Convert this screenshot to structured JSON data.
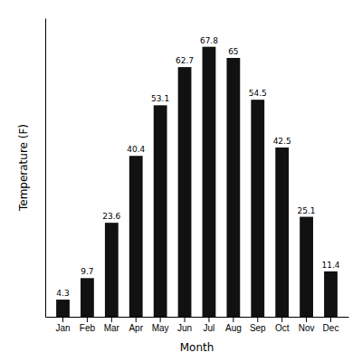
{
  "chart_data": {
    "type": "bar",
    "categories": [
      "Jan",
      "Feb",
      "Mar",
      "Apr",
      "May",
      "Jun",
      "Jul",
      "Aug",
      "Sep",
      "Oct",
      "Nov",
      "Dec"
    ],
    "values": [
      4.3,
      9.7,
      23.6,
      40.4,
      53.1,
      62.7,
      67.8,
      65.0,
      54.5,
      42.5,
      25.1,
      11.4
    ],
    "color": "#111111",
    "x_label": "Month",
    "y_label": "Temperature (F)",
    "ylim": [
      0,
      75
    ],
    "tick_labels": "x",
    "data_labels": true
  }
}
